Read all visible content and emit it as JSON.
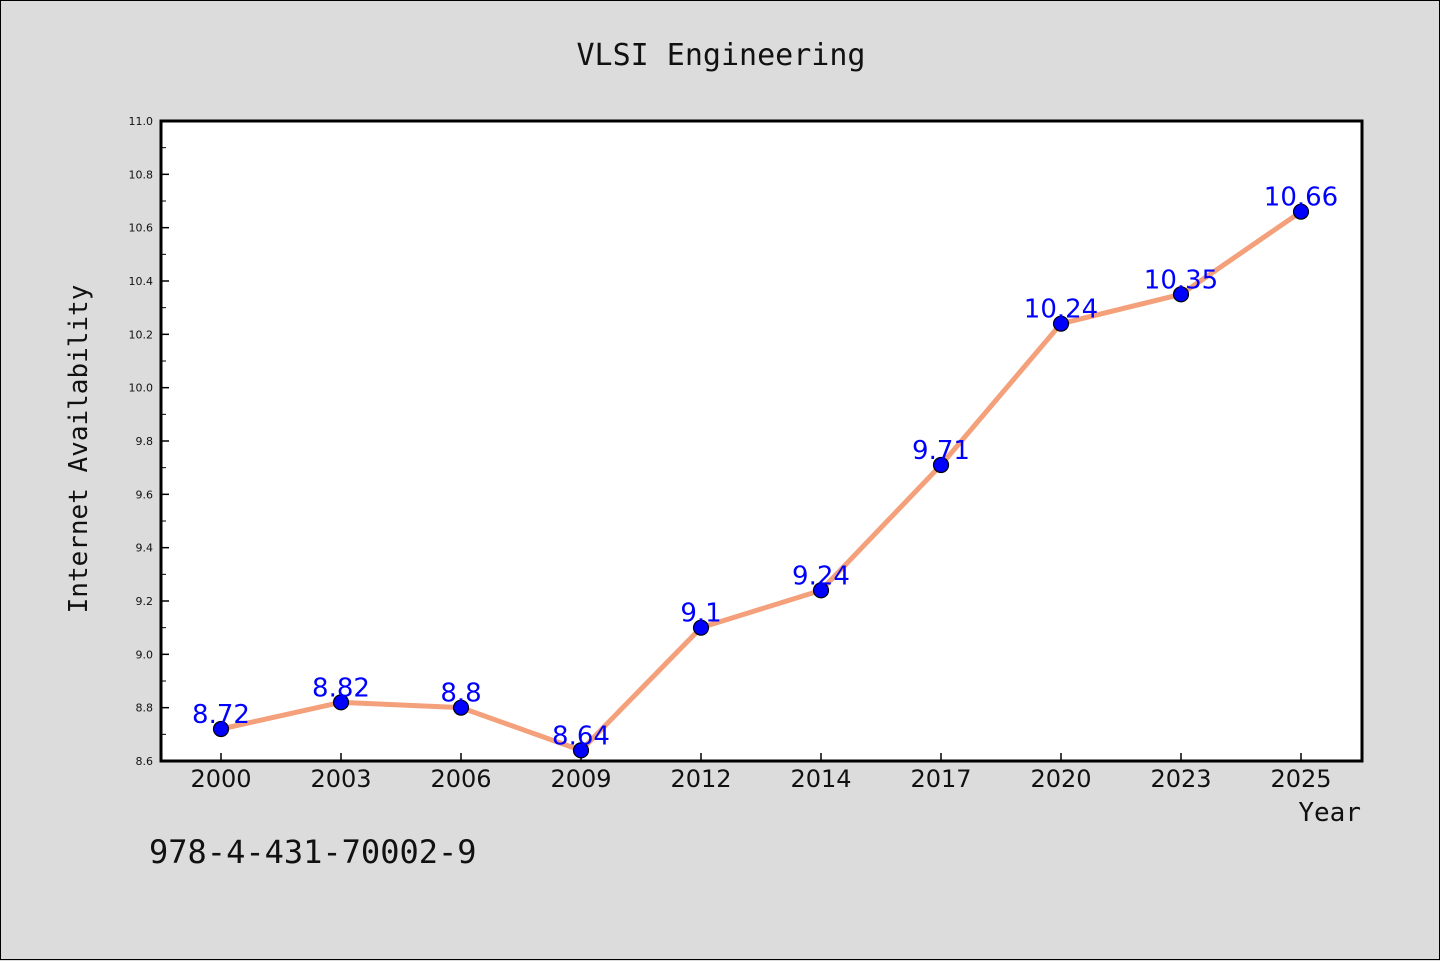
{
  "chart_data": {
    "type": "line",
    "title": "VLSI Engineering",
    "xlabel": "Year",
    "ylabel": "Internet Availability",
    "categories": [
      "2000",
      "2003",
      "2006",
      "2009",
      "2012",
      "2014",
      "2017",
      "2020",
      "2023",
      "2025"
    ],
    "series": [
      {
        "values": [
          8.72,
          8.82,
          8.8,
          8.64,
          9.1,
          9.24,
          9.71,
          10.24,
          10.35,
          10.66
        ]
      }
    ],
    "data_labels": [
      "8.72",
      "8.82",
      "8.8",
      "8.64",
      "9.1",
      "9.24",
      "9.71",
      "10.24",
      "10.35",
      "10.66"
    ],
    "ylim": [
      8.6,
      11.0
    ],
    "y_ticks": [
      "8.6",
      "8.8",
      "9.0",
      "9.2",
      "9.4",
      "9.6",
      "9.8",
      "10.0",
      "10.2",
      "10.4",
      "10.6",
      "10.8",
      "11.0"
    ],
    "grid": false,
    "legend": "none",
    "colors": {
      "line": "#f4a07a",
      "marker": "#0000ff",
      "labels": "#0000ff",
      "background": "#dcdcdc",
      "plot_background": "#ffffff"
    }
  },
  "footer_text": "978-4-431-70002-9"
}
